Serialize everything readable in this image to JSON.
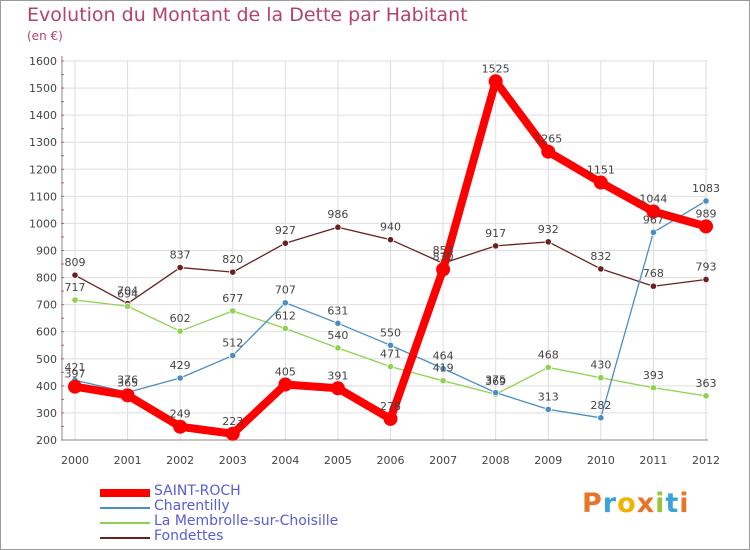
{
  "title": "Evolution du Montant de la Dette par Habitant",
  "subtitle": "(en €)",
  "logo": {
    "letters": [
      "P",
      "r",
      "o",
      "x",
      "i",
      "t",
      "i"
    ],
    "colors": [
      "#e8742a",
      "#3aa3d9",
      "#f0b400",
      "#e8742a",
      "#9ac43a",
      "#3aa3d9",
      "#e8742a"
    ]
  },
  "chart_data": {
    "type": "line",
    "title": "Evolution du Montant de la Dette par Habitant",
    "subtitle": "(en €)",
    "xlabel": "",
    "ylabel": "",
    "x": [
      "2000",
      "2001",
      "2002",
      "2003",
      "2004",
      "2005",
      "2006",
      "2007",
      "2008",
      "2009",
      "2010",
      "2011",
      "2012"
    ],
    "ylim": [
      200,
      1600
    ],
    "yticks": [
      "200",
      "300",
      "400",
      "500",
      "600",
      "700",
      "800",
      "900",
      "1000",
      "1100",
      "1200",
      "1300",
      "1400",
      "1500",
      "1600"
    ],
    "grid": true,
    "legend": "bottom-left",
    "series": [
      {
        "name": "SAINT-ROCH",
        "color": "#ff0000",
        "values": [
          397,
          365,
          249,
          223,
          405,
          391,
          278,
          830,
          1525,
          1265,
          1151,
          1044,
          989
        ],
        "labels": [
          "397",
          "365",
          "249",
          "223",
          "405",
          "391",
          "278",
          "830",
          "1525",
          "1265",
          "1151",
          "1044",
          "989"
        ]
      },
      {
        "name": "Charentilly",
        "color": "#4a8ec4",
        "values": [
          421,
          376,
          429,
          512,
          707,
          631,
          550,
          464,
          375,
          313,
          282,
          967,
          1083
        ],
        "labels": [
          "421",
          "376",
          "429",
          "512",
          "707",
          "631",
          "550",
          "464",
          "375",
          "313",
          "282",
          "967",
          "1083"
        ]
      },
      {
        "name": "La Membrolle-sur-Choisille",
        "color": "#8fd150",
        "values": [
          717,
          694,
          602,
          677,
          612,
          540,
          471,
          419,
          369,
          468,
          430,
          393,
          363
        ],
        "labels": [
          "717",
          "694",
          "602",
          "677",
          "612",
          "540",
          "471",
          "419",
          "369",
          "468",
          "430",
          "393",
          "363"
        ]
      },
      {
        "name": "Fondettes",
        "color": "#6b2020",
        "values": [
          809,
          704,
          837,
          820,
          927,
          986,
          940,
          853,
          917,
          932,
          832,
          768,
          793
        ],
        "labels": [
          "809",
          "704",
          "837",
          "820",
          "927",
          "986",
          "940",
          "853",
          "917",
          "932",
          "832",
          "768",
          "793"
        ]
      }
    ]
  }
}
